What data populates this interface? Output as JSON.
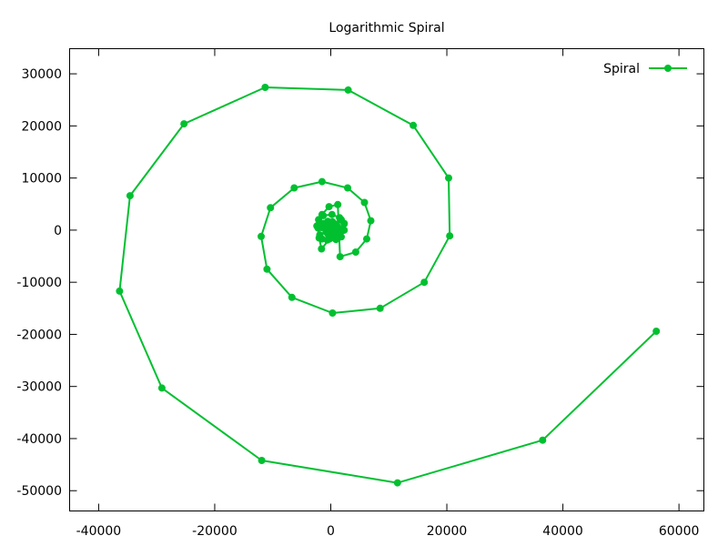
{
  "chart_data": {
    "type": "line",
    "title": "Logarithmic Spiral",
    "xlabel": "",
    "ylabel": "",
    "xlim": [
      -45000,
      65000
    ],
    "ylim": [
      -55000,
      35000
    ],
    "xticks": [
      -40000,
      -20000,
      0,
      20000,
      40000,
      60000
    ],
    "yticks": [
      30000,
      20000,
      10000,
      0,
      -10000,
      -20000,
      -30000,
      -40000,
      -50000
    ],
    "xtick_labels": [
      "-40000",
      "-20000",
      "0",
      "20000",
      "40000",
      "60000"
    ],
    "ytick_labels": [
      "30000",
      "20000",
      "10000",
      "0",
      "-10000",
      "-20000",
      "-30000",
      "-40000",
      "-50000"
    ],
    "grid": false,
    "legend": {
      "position": "top-right",
      "entries": [
        "Spiral"
      ]
    },
    "series": [
      {
        "name": "Spiral",
        "color": "#00c030",
        "marker": "circle",
        "points": [
          [
            0,
            0
          ],
          [
            60,
            50
          ],
          [
            80,
            150
          ],
          [
            -20,
            300
          ],
          [
            -150,
            350
          ],
          [
            -300,
            250
          ],
          [
            -380,
            50
          ],
          [
            -350,
            -200
          ],
          [
            -200,
            -380
          ],
          [
            60,
            -430
          ],
          [
            350,
            -300
          ],
          [
            500,
            -30
          ],
          [
            450,
            300
          ],
          [
            200,
            560
          ],
          [
            -200,
            700
          ],
          [
            -600,
            600
          ],
          [
            -850,
            200
          ],
          [
            -820,
            -350
          ],
          [
            -450,
            -800
          ],
          [
            150,
            -1050
          ],
          [
            800,
            -900
          ],
          [
            1300,
            -400
          ],
          [
            1400,
            350
          ],
          [
            1000,
            1100
          ],
          [
            300,
            1600
          ],
          [
            -500,
            1700
          ],
          [
            -1200,
            1300
          ],
          [
            -1600,
            500
          ],
          [
            1800,
            2000
          ],
          [
            2300,
            1300
          ],
          [
            2200,
            0
          ],
          [
            1600,
            -1300
          ],
          [
            -600,
            -1900
          ],
          [
            -1500,
            -1700
          ],
          [
            -1900,
            -900
          ],
          [
            -2400,
            800
          ],
          [
            -2100,
            2000
          ],
          [
            -1300,
            2800
          ],
          [
            200,
            3000
          ],
          [
            1500,
            2400
          ],
          [
            2300,
            1200
          ],
          [
            2300,
            0
          ],
          [
            1800,
            -1300
          ],
          [
            900,
            -1800
          ],
          [
            -200,
            -1700
          ],
          [
            -1600,
            -3600
          ],
          [
            -2000,
            -1500
          ],
          [
            -2200,
            400
          ],
          [
            -1500,
            3000
          ],
          [
            -300,
            4500
          ],
          [
            1200,
            4900
          ],
          [
            1600,
            -5100
          ],
          [
            4300,
            -4200
          ],
          [
            6200,
            -1700
          ],
          [
            6900,
            1800
          ],
          [
            5800,
            5300
          ],
          [
            2900,
            8100
          ],
          [
            -1500,
            9300
          ],
          [
            -6300,
            8100
          ],
          [
            -10400,
            4300
          ],
          [
            -12000,
            -1200
          ],
          [
            -11000,
            -7500
          ],
          [
            -6700,
            -12900
          ],
          [
            300,
            -15900
          ],
          [
            8500,
            -15000
          ],
          [
            16100,
            -10000
          ],
          [
            20500,
            -1100
          ],
          [
            20300,
            10000
          ],
          [
            14200,
            20100
          ],
          [
            3000,
            26900
          ],
          [
            -11300,
            27400
          ],
          [
            -25300,
            20400
          ],
          [
            -34600,
            6600
          ],
          [
            -36400,
            -11700
          ],
          [
            -29100,
            -30300
          ],
          [
            -11900,
            -44200
          ],
          [
            11500,
            -48500
          ],
          [
            36500,
            -40300
          ],
          [
            56100,
            -19400
          ]
        ]
      }
    ]
  }
}
